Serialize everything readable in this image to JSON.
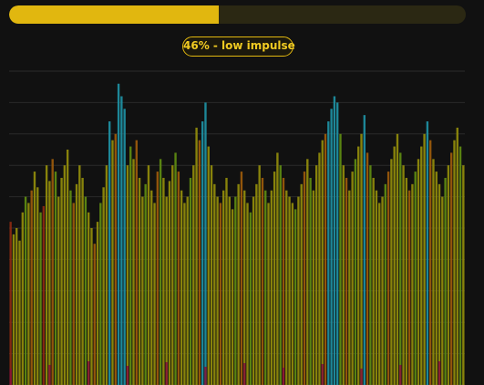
{
  "impulse": {
    "progress": 0.46,
    "status_text": "46% - low impulse"
  },
  "colors": {
    "background": "#111111",
    "progress_track": "#2b2813",
    "progress_fill": "#e1b70f",
    "badge_text": "#f1cb22",
    "gridline": "#2a2a2a",
    "bar_yellow": "#8f8a0c",
    "bar_green": "#5e8a12",
    "bar_orange": "#9a5a0c",
    "bar_red": "#8a2a12",
    "bar_cyan": "#1f8ea0",
    "bar_magenta": "#8a0f3a"
  },
  "chart_data": {
    "type": "bar",
    "grid": true,
    "ylim": [
      0,
      100
    ],
    "series": [
      {
        "values": [
          52,
          48,
          50,
          46,
          55,
          60,
          58,
          62,
          68,
          63,
          55,
          57,
          70,
          65,
          72,
          68,
          60,
          66,
          70,
          75,
          62,
          58,
          64,
          70,
          66,
          60,
          55,
          50,
          45,
          52,
          58,
          63,
          70,
          84,
          78,
          80,
          96,
          92,
          88,
          70,
          76,
          72,
          78,
          66,
          60,
          64,
          70,
          62,
          58,
          68,
          72,
          66,
          60,
          65,
          70,
          74,
          68,
          62,
          58,
          60,
          66,
          70,
          82,
          78,
          84,
          90,
          76,
          70,
          64,
          60,
          58,
          62,
          66,
          60,
          56,
          60,
          64,
          68,
          62,
          58,
          55,
          60,
          64,
          70,
          66,
          62,
          58,
          62,
          68,
          74,
          70,
          66,
          62,
          60,
          58,
          56,
          60,
          64,
          68,
          72,
          66,
          62,
          70,
          74,
          78,
          80,
          84,
          88,
          92,
          90,
          80,
          70,
          66,
          62,
          68,
          72,
          76,
          80,
          86,
          74,
          70,
          66,
          62,
          58,
          60,
          64,
          68,
          72,
          76,
          80,
          74,
          70,
          66,
          62,
          64,
          68,
          72,
          76,
          80,
          84,
          78,
          72,
          68,
          64,
          60,
          66,
          70,
          74,
          78,
          82,
          76,
          70
        ]
      }
    ]
  }
}
